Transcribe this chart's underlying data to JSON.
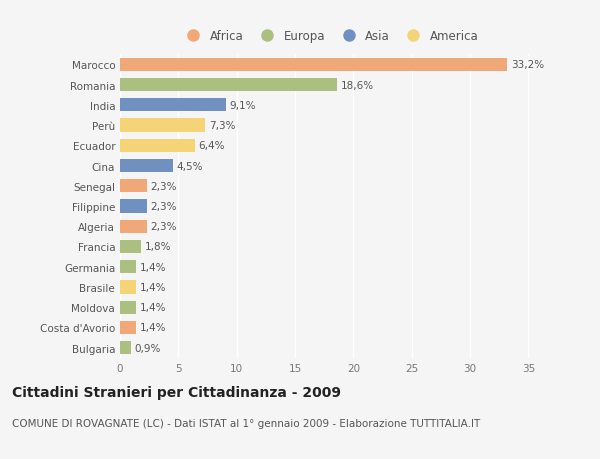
{
  "categories": [
    "Marocco",
    "Romania",
    "India",
    "Perù",
    "Ecuador",
    "Cina",
    "Senegal",
    "Filippine",
    "Algeria",
    "Francia",
    "Germania",
    "Brasile",
    "Moldova",
    "Costa d'Avorio",
    "Bulgaria"
  ],
  "values": [
    33.2,
    18.6,
    9.1,
    7.3,
    6.4,
    4.5,
    2.3,
    2.3,
    2.3,
    1.8,
    1.4,
    1.4,
    1.4,
    1.4,
    0.9
  ],
  "labels": [
    "33,2%",
    "18,6%",
    "9,1%",
    "7,3%",
    "6,4%",
    "4,5%",
    "2,3%",
    "2,3%",
    "2,3%",
    "1,8%",
    "1,4%",
    "1,4%",
    "1,4%",
    "1,4%",
    "0,9%"
  ],
  "continents": [
    "Africa",
    "Europa",
    "Asia",
    "America",
    "America",
    "Asia",
    "Africa",
    "Asia",
    "Africa",
    "Europa",
    "Europa",
    "America",
    "Europa",
    "Africa",
    "Europa"
  ],
  "colors": {
    "Africa": "#F0A878",
    "Europa": "#AABF80",
    "Asia": "#7090C0",
    "America": "#F5D478"
  },
  "legend_order": [
    "Africa",
    "Europa",
    "Asia",
    "America"
  ],
  "xlim": [
    0,
    36
  ],
  "xticks": [
    0,
    5,
    10,
    15,
    20,
    25,
    30,
    35
  ],
  "bg_color": "#f5f5f5",
  "title": "Cittadini Stranieri per Cittadinanza - 2009",
  "subtitle": "COMUNE DI ROVAGNATE (LC) - Dati ISTAT al 1° gennaio 2009 - Elaborazione TUTTITALIA.IT",
  "title_fontsize": 10,
  "subtitle_fontsize": 7.5,
  "label_fontsize": 7.5,
  "tick_fontsize": 7.5,
  "legend_fontsize": 8.5
}
